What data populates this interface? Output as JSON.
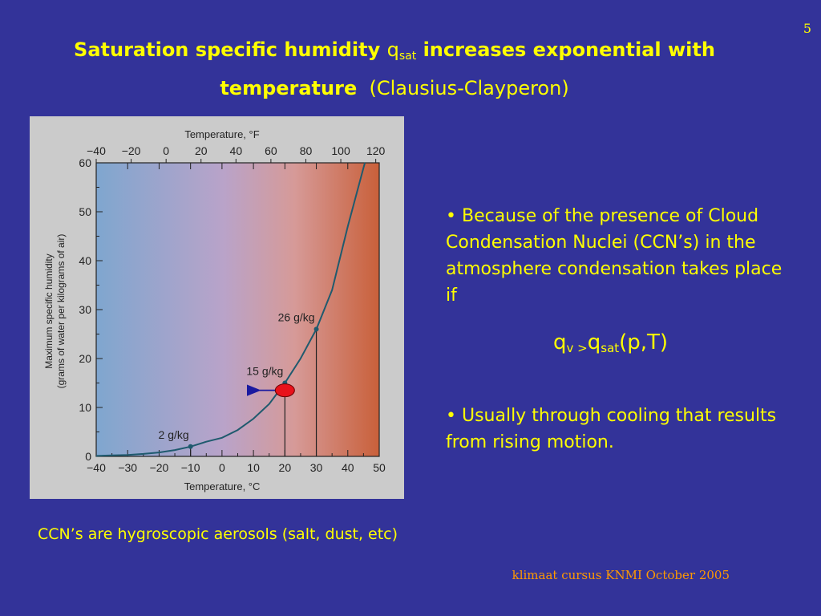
{
  "slide_number": "5",
  "title": {
    "bold_part1": "Saturation specific humidity ",
    "q": "q",
    "q_sub": "sat",
    "bold_part2": " increases exponential with",
    "bold_line2": "temperature",
    "normal_part": "(Clausius-Clayperon)"
  },
  "bullets": {
    "item1": "• Because of the presence of Cloud Condensation Nuclei (CCN’s) in the atmosphere condensation takes place if",
    "formula_q": "q",
    "formula_sub1": "v >",
    "formula_q2": "q",
    "formula_sub2": "sat",
    "formula_tail": "(p,T)",
    "item2": "• Usually through cooling that results from rising motion."
  },
  "caption": "CCN’s are hygroscopic aerosols (salt, dust, etc)",
  "footer": "klimaat cursus KNMI  October 2005",
  "colors": {
    "background": "#333399",
    "text": "#ffff00",
    "footer": "#ff9900",
    "curve": "#1f5a6e",
    "marker": "#e8121b",
    "arrow": "#1a1aa0",
    "gradient_cold": "#7fa6cf",
    "gradient_warm": "#c9603a"
  },
  "chart_data": {
    "type": "line",
    "top_axis_label": "Temperature, °F",
    "top_ticks": [
      -40,
      -20,
      0,
      20,
      40,
      60,
      80,
      100,
      120
    ],
    "xlabel": "Temperature, °C",
    "x_ticks": [
      -40,
      -30,
      -20,
      -10,
      0,
      10,
      20,
      30,
      40,
      50
    ],
    "xlim": [
      -40,
      50
    ],
    "ylabel_line1": "Maximum specific humidity",
    "ylabel_line2": "(grams of water per kilograms of air)",
    "y_ticks": [
      0,
      10,
      20,
      30,
      40,
      50,
      60
    ],
    "ylim": [
      0,
      60
    ],
    "series": [
      {
        "x": [
          -40,
          -35,
          -30,
          -25,
          -20,
          -15,
          -10,
          -5,
          0,
          5,
          10,
          15,
          20,
          25,
          30,
          35,
          40,
          45,
          48
        ],
        "values": [
          0.1,
          0.2,
          0.3,
          0.5,
          0.8,
          1.3,
          2,
          3,
          3.8,
          5.4,
          7.7,
          10.7,
          15,
          20,
          26,
          34,
          47,
          59,
          66
        ]
      }
    ],
    "annotations": [
      {
        "x": -10,
        "y": 2,
        "label": "2 g/kg"
      },
      {
        "x": 20,
        "y": 15,
        "label": "15 g/kg"
      },
      {
        "x": 30,
        "y": 26,
        "label": "26 g/kg"
      }
    ],
    "marker": {
      "x": 20,
      "y": 13.5
    },
    "arrow": {
      "from_x": 20,
      "to_x": 12,
      "y": 13.5
    }
  }
}
